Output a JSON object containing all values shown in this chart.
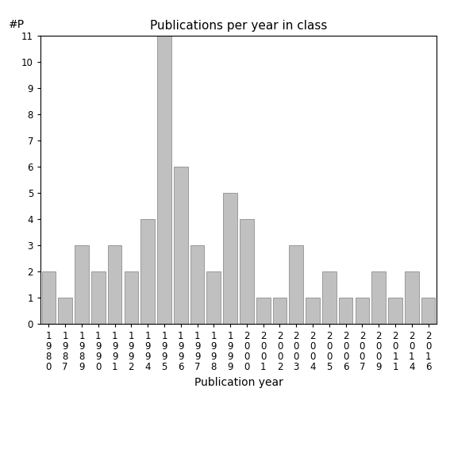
{
  "years": [
    "1980",
    "1987",
    "1989",
    "1990",
    "1991",
    "1992",
    "1994",
    "1995",
    "1996",
    "1997",
    "1998",
    "1999",
    "2000",
    "2001",
    "2002",
    "2003",
    "2004",
    "2005",
    "2006",
    "2007",
    "2009",
    "2011",
    "2014",
    "2016"
  ],
  "values": [
    2,
    1,
    3,
    2,
    3,
    2,
    4,
    11,
    6,
    3,
    2,
    5,
    4,
    1,
    1,
    3,
    1,
    2,
    1,
    1,
    2,
    1,
    2,
    1
  ],
  "title": "Publications per year in class",
  "xlabel": "Publication year",
  "ylabel": "#P",
  "bar_color": "#c0c0c0",
  "bar_edge_color": "#808080",
  "ylim": [
    0,
    11
  ],
  "yticks": [
    0,
    1,
    2,
    3,
    4,
    5,
    6,
    7,
    8,
    9,
    10,
    11
  ],
  "background_color": "#ffffff",
  "title_fontsize": 11,
  "label_fontsize": 10,
  "tick_fontsize": 8.5
}
